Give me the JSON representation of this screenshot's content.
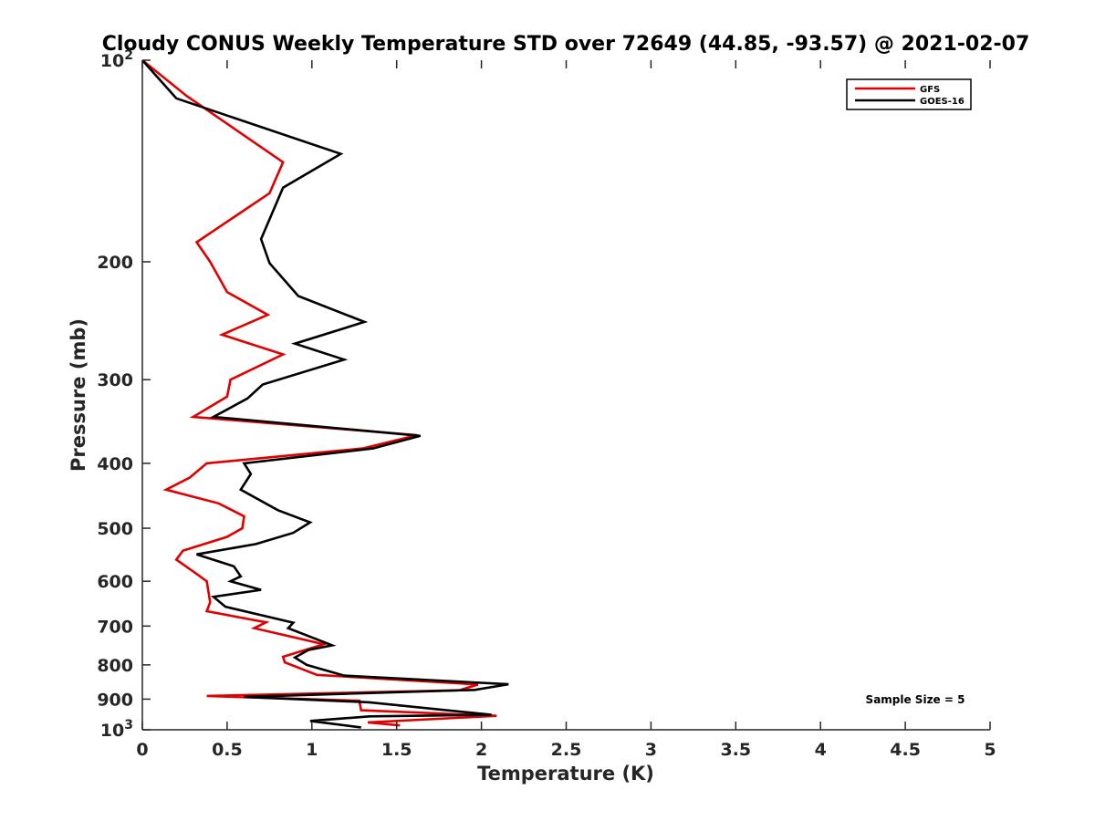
{
  "chart_data": {
    "type": "line",
    "title": "Cloudy CONUS Weekly Temperature STD over 72649 (44.85, -93.57) @ 2021-02-07",
    "xlabel": "Temperature (K)",
    "ylabel": "Pressure (mb)",
    "xlim": [
      0,
      5
    ],
    "ylim": [
      1000,
      100
    ],
    "yscale": "log",
    "y_reversed": true,
    "x_ticks": [
      "0",
      "0.5",
      "1",
      "1.5",
      "2",
      "2.5",
      "3",
      "3.5",
      "4",
      "4.5",
      "5"
    ],
    "y_ticks": [
      {
        "value": 100,
        "base": "10",
        "exp": "2"
      },
      {
        "value": 200,
        "label": "200"
      },
      {
        "value": 300,
        "label": "300"
      },
      {
        "value": 400,
        "label": "400"
      },
      {
        "value": 500,
        "label": "500"
      },
      {
        "value": 600,
        "label": "600"
      },
      {
        "value": 700,
        "label": "700"
      },
      {
        "value": 800,
        "label": "800"
      },
      {
        "value": 900,
        "label": "900"
      },
      {
        "value": 1000,
        "base": "10",
        "exp": "3"
      }
    ],
    "grid": false,
    "legend_position": "top-right",
    "annotation": "Sample Size = 5",
    "series": [
      {
        "name": "GFS",
        "color": "#e00000",
        "x": [
          0,
          0.26,
          0.83,
          0.75,
          0.32,
          0.4,
          0.5,
          0.74,
          0.47,
          0.83,
          0.52,
          0.5,
          0.3,
          1.62,
          1.3,
          0.38,
          0.28,
          0.14,
          0.45,
          0.6,
          0.59,
          0.5,
          0.24,
          0.2,
          0.3,
          0.38,
          0.4,
          0.38,
          0.73,
          0.66,
          1.07,
          0.83,
          0.84,
          1.03,
          1.98,
          1.87,
          0.38,
          1.28,
          1.29,
          2.09,
          1.33,
          1.52
        ],
        "y": [
          100,
          113,
          142,
          158,
          187,
          200,
          222,
          240,
          257,
          275,
          300,
          318,
          341,
          363,
          380,
          400,
          420,
          438,
          459,
          480,
          500,
          515,
          540,
          557,
          580,
          600,
          645,
          665,
          691,
          705,
          745,
          778,
          793,
          828,
          856,
          873,
          890,
          905,
          935,
          953,
          975,
          985
        ]
      },
      {
        "name": "GOES-16",
        "color": "#000000",
        "x": [
          0,
          0.2,
          1.17,
          0.83,
          0.7,
          0.75,
          0.92,
          1.31,
          0.9,
          1.19,
          0.71,
          0.62,
          0.42,
          1.64,
          1.36,
          0.6,
          0.64,
          0.58,
          0.8,
          0.99,
          0.89,
          0.67,
          0.32,
          0.54,
          0.58,
          0.52,
          0.7,
          0.42,
          0.49,
          0.89,
          0.86,
          1.12,
          0.98,
          0.9,
          0.97,
          1.19,
          2.16,
          1.96,
          0.6,
          1.34,
          2.06,
          1.34,
          0.99,
          1.29
        ],
        "y": [
          100,
          114,
          138,
          155,
          185,
          201,
          225,
          246,
          265,
          280,
          305,
          320,
          341,
          364,
          380,
          400,
          415,
          438,
          470,
          490,
          508,
          528,
          547,
          570,
          590,
          600,
          618,
          633,
          655,
          692,
          705,
          748,
          760,
          780,
          800,
          830,
          855,
          872,
          893,
          910,
          950,
          955,
          970,
          992
        ]
      }
    ]
  }
}
